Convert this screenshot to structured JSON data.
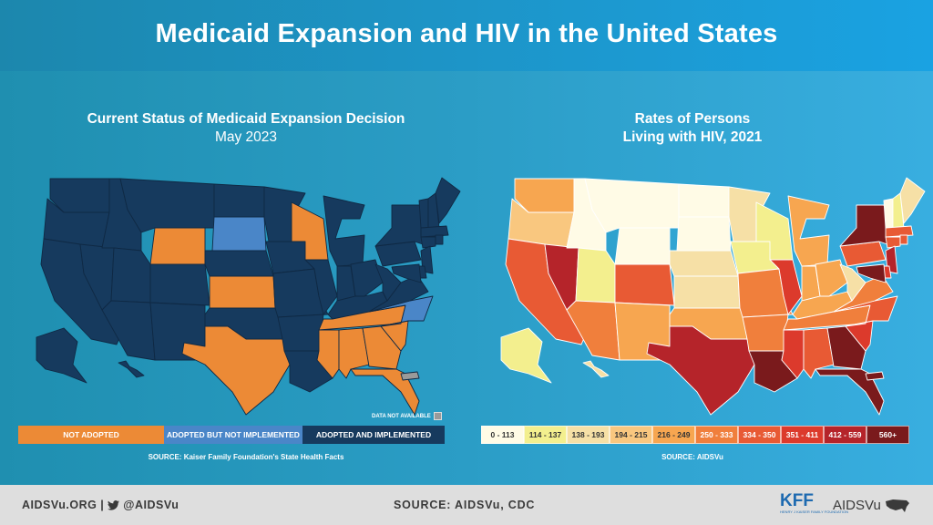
{
  "header": {
    "title": "Medicaid Expansion and HIV in the United States"
  },
  "left_panel": {
    "title": "Current Status of Medicaid Expansion Decision",
    "subtitle": "May 2023",
    "na_label": "DATA NOT AVAILABLE",
    "legend": [
      {
        "label": "NOT ADOPTED",
        "color": "#ec8a36"
      },
      {
        "label": "ADOPTED BUT NOT IMPLEMENTED",
        "color": "#4a86c8"
      },
      {
        "label": "ADOPTED AND IMPLEMENTED",
        "color": "#163a5e"
      }
    ],
    "source": "SOURCE: Kaiser Family Foundation's State Health Facts"
  },
  "right_panel": {
    "title_line1": "Rates of Persons",
    "title_line2": "Living with HIV, 2021",
    "legend": [
      {
        "label": "0 - 113",
        "color": "#fffbe6",
        "text": "#333"
      },
      {
        "label": "114 - 137",
        "color": "#f3ef8e",
        "text": "#333"
      },
      {
        "label": "138 - 193",
        "color": "#f6e0a6",
        "text": "#333"
      },
      {
        "label": "194 - 215",
        "color": "#f9c77f",
        "text": "#333"
      },
      {
        "label": "216 - 249",
        "color": "#f7a650",
        "text": "#333"
      },
      {
        "label": "250 - 333",
        "color": "#f07f3c",
        "text": "#fff"
      },
      {
        "label": "334 - 350",
        "color": "#e85a34",
        "text": "#fff"
      },
      {
        "label": "351 - 411",
        "color": "#dc3a2c",
        "text": "#fff"
      },
      {
        "label": "412 - 559",
        "color": "#b5242a",
        "text": "#fff"
      },
      {
        "label": "560+",
        "color": "#7a1a1c",
        "text": "#fff"
      }
    ],
    "source": "SOURCE: AIDSVu"
  },
  "footer": {
    "left": "AIDSVu.ORG  |",
    "handle": "@AIDSVu",
    "center": "SOURCE: AIDSVu, CDC",
    "kff": "KFF",
    "kff_sub": "HENRY J KAISER FAMILY FOUNDATION",
    "aidsvu": "AIDSVu"
  },
  "colors": {
    "not_adopted": "#ec8a36",
    "adopted_not_impl": "#4a86c8",
    "adopted_impl": "#163a5e",
    "na": "#9a9a9a"
  },
  "medicaid_status": {
    "not_adopted": [
      "WY",
      "KS",
      "WI",
      "TX",
      "TN",
      "MS",
      "AL",
      "GA",
      "SC",
      "FL"
    ],
    "adopted_not_implemented": [
      "SD",
      "NC"
    ],
    "adopted_and_implemented": [
      "WA",
      "OR",
      "CA",
      "NV",
      "ID",
      "MT",
      "UT",
      "AZ",
      "CO",
      "NM",
      "ND",
      "NE",
      "OK",
      "MN",
      "IA",
      "MO",
      "AR",
      "LA",
      "IL",
      "IN",
      "MI",
      "OH",
      "KY",
      "WV",
      "VA",
      "PA",
      "NY",
      "ME",
      "VT",
      "NH",
      "MA",
      "CT",
      "RI",
      "NJ",
      "DE",
      "MD",
      "AK",
      "HI"
    ],
    "not_available": [
      "PR"
    ]
  },
  "hiv_rate_bin": {
    "WA": 5,
    "OR": 4,
    "CA": 7,
    "NV": 9,
    "ID": 1,
    "MT": 1,
    "WY": 1,
    "UT": 2,
    "AZ": 6,
    "CO": 7,
    "NM": 5,
    "ND": 1,
    "SD": 1,
    "NE": 3,
    "KS": 3,
    "OK": 5,
    "TX": 9,
    "MN": 3,
    "IA": 2,
    "MO": 6,
    "AR": 6,
    "LA": 10,
    "WI": 2,
    "IL": 8,
    "MI": 5,
    "IN": 5,
    "OH": 5,
    "KY": 5,
    "TN": 6,
    "MS": 8,
    "AL": 7,
    "GA": 10,
    "FL": 10,
    "SC": 8,
    "NC": 7,
    "VA": 6,
    "WV": 3,
    "PA": 7,
    "NY": 10,
    "VT": 1,
    "NH": 2,
    "ME": 3,
    "MA": 7,
    "RI": 7,
    "CT": 7,
    "NJ": 9,
    "DE": 8,
    "MD": 10,
    "AK": 2,
    "HI": 3,
    "PR": 10
  }
}
